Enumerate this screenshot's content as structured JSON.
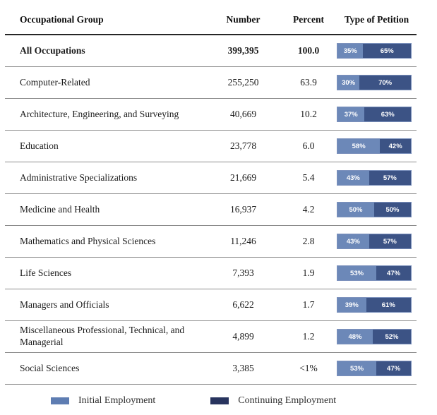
{
  "header": {
    "group": "Occupational Group",
    "number": "Number",
    "percent": "Percent",
    "petition": "Type of Petition"
  },
  "rows": [
    {
      "group": "All Occupations",
      "number": "399,395",
      "percent": "100.0",
      "initial": 35,
      "continuing": 65,
      "initial_label": "35%",
      "continuing_label": "65%",
      "bold": true
    },
    {
      "group": "Computer-Related",
      "number": "255,250",
      "percent": "63.9",
      "initial": 30,
      "continuing": 70,
      "initial_label": "30%",
      "continuing_label": "70%",
      "bold": false
    },
    {
      "group": "Architecture, Engineering, and Surveying",
      "number": "40,669",
      "percent": "10.2",
      "initial": 37,
      "continuing": 63,
      "initial_label": "37%",
      "continuing_label": "63%",
      "bold": false
    },
    {
      "group": "Education",
      "number": "23,778",
      "percent": "6.0",
      "initial": 58,
      "continuing": 42,
      "initial_label": "58%",
      "continuing_label": "42%",
      "bold": false
    },
    {
      "group": "Administrative Specializations",
      "number": "21,669",
      "percent": "5.4",
      "initial": 43,
      "continuing": 57,
      "initial_label": "43%",
      "continuing_label": "57%",
      "bold": false
    },
    {
      "group": "Medicine and Health",
      "number": "16,937",
      "percent": "4.2",
      "initial": 50,
      "continuing": 50,
      "initial_label": "50%",
      "continuing_label": "50%",
      "bold": false
    },
    {
      "group": "Mathematics and Physical Sciences",
      "number": "11,246",
      "percent": "2.8",
      "initial": 43,
      "continuing": 57,
      "initial_label": "43%",
      "continuing_label": "57%",
      "bold": false
    },
    {
      "group": "Life Sciences",
      "number": "7,393",
      "percent": "1.9",
      "initial": 53,
      "continuing": 47,
      "initial_label": "53%",
      "continuing_label": "47%",
      "bold": false
    },
    {
      "group": "Managers and Officials",
      "number": "6,622",
      "percent": "1.7",
      "initial": 39,
      "continuing": 61,
      "initial_label": "39%",
      "continuing_label": "61%",
      "bold": false
    },
    {
      "group": "Miscellaneous Professional, Technical, and Managerial",
      "number": "4,899",
      "percent": "1.2",
      "initial": 48,
      "continuing": 52,
      "initial_label": "48%",
      "continuing_label": "52%",
      "bold": false
    },
    {
      "group": "Social Sciences",
      "number": "3,385",
      "percent": "<1%",
      "initial": 53,
      "continuing": 47,
      "initial_label": "53%",
      "continuing_label": "47%",
      "bold": false
    }
  ],
  "legend": {
    "initial": "Initial Employment",
    "continuing": "Continuing Employment"
  },
  "colors": {
    "initial_segment": "#6c88b8",
    "continuing_segment": "#3c5385",
    "bar_border": "#7d92bd",
    "legend_initial": "#5e7db2",
    "legend_continuing": "#28345e",
    "header_rule": "#262626",
    "row_rule": "#8c8c8c"
  },
  "chart_data": {
    "type": "bar",
    "subtype": "stacked-horizontal-100pct",
    "title": "",
    "xlabel": "",
    "ylabel": "",
    "columns": [
      "Occupational Group",
      "Number",
      "Percent",
      "Type of Petition"
    ],
    "categories": [
      "All Occupations",
      "Computer-Related",
      "Architecture, Engineering, and Surveying",
      "Education",
      "Administrative Specializations",
      "Medicine and Health",
      "Mathematics and Physical Sciences",
      "Life Sciences",
      "Managers and Officials",
      "Miscellaneous Professional, Technical, and Managerial",
      "Social Sciences"
    ],
    "number_values": [
      399395,
      255250,
      40669,
      23778,
      21669,
      16937,
      11246,
      7393,
      6622,
      4899,
      3385
    ],
    "percent_of_total": [
      "100.0",
      "63.9",
      "10.2",
      "6.0",
      "5.4",
      "4.2",
      "2.8",
      "1.9",
      "1.7",
      "1.2",
      "<1%"
    ],
    "series": [
      {
        "name": "Initial Employment",
        "values": [
          35,
          30,
          37,
          58,
          43,
          50,
          43,
          53,
          39,
          48,
          53
        ]
      },
      {
        "name": "Continuing Employment",
        "values": [
          65,
          70,
          63,
          42,
          57,
          50,
          57,
          47,
          61,
          52,
          47
        ]
      }
    ],
    "xlim": [
      0,
      100
    ],
    "grid": false,
    "legend_position": "bottom"
  }
}
